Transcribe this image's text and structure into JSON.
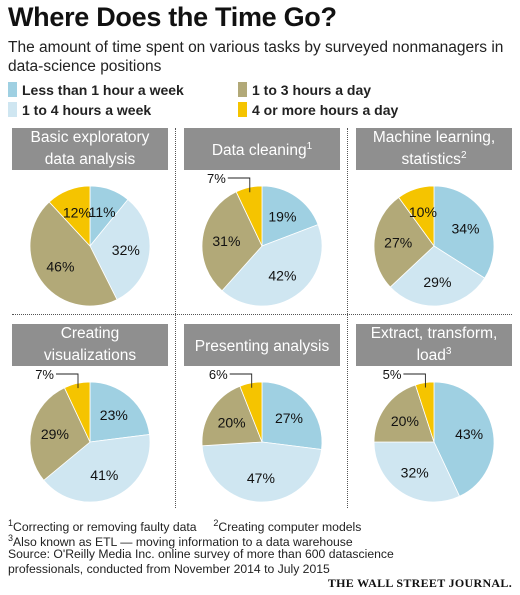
{
  "header": {
    "title": "Where Does the Time Go?",
    "subtitle": "The amount of time spent on various tasks by surveyed nonmanagers in data-science positions"
  },
  "legend": [
    {
      "label": "Less than 1 hour a week",
      "color": "#9fd0e2"
    },
    {
      "label": "1 to 3 hours a day",
      "color": "#b2a978"
    },
    {
      "label": "1 to 4 hours a week",
      "color": "#cfe6f1"
    },
    {
      "label": "4 or more hours a day",
      "color": "#f5c400"
    }
  ],
  "chart_data": [
    {
      "type": "pie",
      "title": "Basic exploratory data analysis",
      "note": "",
      "slices": [
        {
          "label": "Less than 1 hour a week",
          "value": 11
        },
        {
          "label": "1 to 4 hours a week",
          "value": 32
        },
        {
          "label": "1 to 3 hours a day",
          "value": 46
        },
        {
          "label": "4 or more hours a day",
          "value": 12
        }
      ]
    },
    {
      "type": "pie",
      "title": "Data cleaning",
      "note": "1",
      "slices": [
        {
          "label": "Less than 1 hour a week",
          "value": 19
        },
        {
          "label": "1 to 4 hours a week",
          "value": 42
        },
        {
          "label": "1 to 3 hours a day",
          "value": 31
        },
        {
          "label": "4 or more hours a day",
          "value": 7
        }
      ]
    },
    {
      "type": "pie",
      "title": "Machine learning, statistics",
      "note": "2",
      "slices": [
        {
          "label": "Less than 1 hour a week",
          "value": 34
        },
        {
          "label": "1 to 4 hours a week",
          "value": 29
        },
        {
          "label": "1 to 3 hours a day",
          "value": 27
        },
        {
          "label": "4 or more hours a day",
          "value": 10
        }
      ]
    },
    {
      "type": "pie",
      "title": "Creating visualizations",
      "note": "",
      "slices": [
        {
          "label": "Less than 1 hour a week",
          "value": 23
        },
        {
          "label": "1 to 4 hours a week",
          "value": 41
        },
        {
          "label": "1 to 3 hours a day",
          "value": 29
        },
        {
          "label": "4 or more hours a day",
          "value": 7
        }
      ]
    },
    {
      "type": "pie",
      "title": "Presenting analysis",
      "note": "",
      "slices": [
        {
          "label": "Less than 1 hour a week",
          "value": 27
        },
        {
          "label": "1 to 4 hours a week",
          "value": 47
        },
        {
          "label": "1 to 3 hours a day",
          "value": 20
        },
        {
          "label": "4 or more hours a day",
          "value": 6
        }
      ]
    },
    {
      "type": "pie",
      "title": "Extract, transform, load",
      "note": "3",
      "slices": [
        {
          "label": "Less than 1 hour a week",
          "value": 43
        },
        {
          "label": "1 to 4 hours a week",
          "value": 32
        },
        {
          "label": "1 to 3 hours a day",
          "value": 20
        },
        {
          "label": "4 or more hours a day",
          "value": 5
        }
      ]
    }
  ],
  "footnotes": {
    "note1": "Correcting or removing faulty data",
    "note2": "Creating computer models",
    "note3": "Also known as ETL — moving information to a data warehouse",
    "source_line1": "Source: O'Reilly Media Inc. online survey of more than 600 datascience",
    "source_line2": "professionals, conducted from November 2014 to July 2015"
  },
  "credit": "THE WALL STREET JOURNAL."
}
